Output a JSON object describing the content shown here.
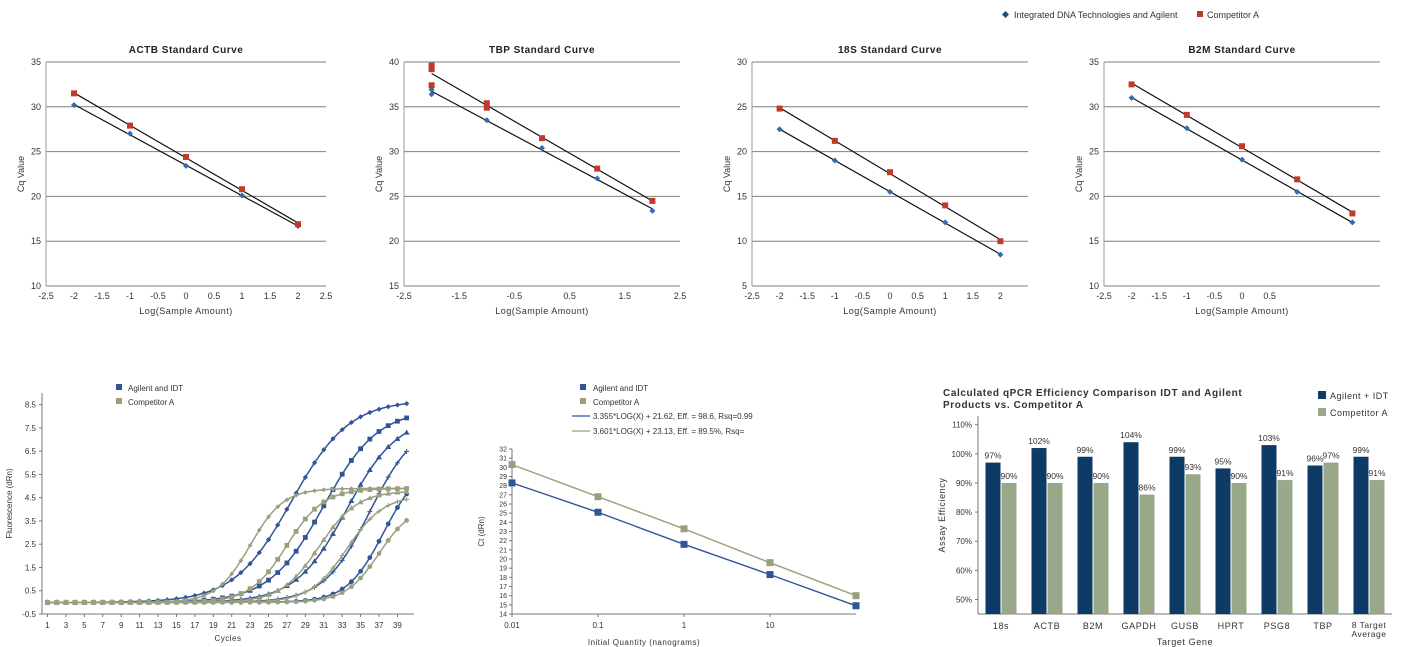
{
  "colors": {
    "idt": "#1f4e79",
    "competitor": "#c0392b",
    "idt_marker": "#2e6db4",
    "competitor_marker": "#c0392b",
    "fluor_agilent": "#2f5597",
    "fluor_competitor": "#9aa07e",
    "bar_agilent": "#0d3b66",
    "bar_competitor": "#9aa88a",
    "grid": "#7f7f7f"
  },
  "top_legend": {
    "series1": "Integrated DNA Technologies and Agilent",
    "series2": "Competitor A"
  },
  "fluorescence_legend": {
    "agilent": "Agilent and IDT",
    "competitor": "Competitor A"
  },
  "regression_legend": {
    "agilent": "Agilent and IDT",
    "competitor": "Competitor A",
    "agilent_fit": "3.355*LOG(X) + 21.62, Eff. = 98.6, Rsq=0.99",
    "competitor_fit": "3.601*LOG(X) + 23.13, Eff. = 89.5%, Rsq="
  },
  "chart_data": [
    {
      "type": "line",
      "title": "ACTB Standard Curve",
      "xlabel": "Log(Sample Amount)",
      "ylabel": "Cq Value",
      "xlim": [
        -2.5,
        2.5
      ],
      "ylim": [
        10,
        35
      ],
      "x_ticks": [
        "-2.5",
        "-2",
        "-1.5",
        "-1",
        "-0.5",
        "0",
        "0.5",
        "1",
        "1.5",
        "2",
        "2.5"
      ],
      "y_ticks": [
        "10",
        "15",
        "20",
        "25",
        "30",
        "35"
      ],
      "series": [
        {
          "name": "Integrated DNA Technologies and Agilent",
          "x": [
            -2,
            -1,
            0,
            1,
            2
          ],
          "y": [
            30.2,
            27.0,
            23.4,
            20.1,
            16.7
          ]
        },
        {
          "name": "Competitor A",
          "x": [
            -2,
            -1,
            0,
            1,
            2
          ],
          "y": [
            31.5,
            27.9,
            24.4,
            20.8,
            16.9
          ]
        }
      ]
    },
    {
      "type": "line",
      "title": "TBP Standard Curve",
      "xlabel": "Log(Sample Amount)",
      "ylabel": "Cq Value",
      "xlim": [
        -2.5,
        2.5
      ],
      "ylim": [
        15,
        40
      ],
      "x_ticks": [
        "-2.5",
        "-1.5",
        "-0.5",
        "0.5",
        "1.5",
        "2.5"
      ],
      "y_ticks": [
        "15",
        "20",
        "25",
        "30",
        "35",
        "40"
      ],
      "series": [
        {
          "name": "Integrated DNA Technologies and Agilent",
          "x": [
            -2,
            -2,
            -1,
            0,
            1,
            2
          ],
          "y": [
            36.4,
            36.9,
            33.5,
            30.4,
            27.0,
            23.4
          ]
        },
        {
          "name": "Competitor A",
          "x": [
            -2,
            -2,
            -2,
            -1,
            -1,
            0,
            1,
            2
          ],
          "y": [
            37.4,
            39.2,
            39.6,
            35.4,
            34.9,
            31.5,
            28.1,
            24.5
          ]
        }
      ]
    },
    {
      "type": "line",
      "title": "18S Standard Curve",
      "xlabel": "Log(Sample Amount)",
      "ylabel": "Cq Value",
      "xlim": [
        -2.5,
        2.5
      ],
      "ylim": [
        5,
        30
      ],
      "x_ticks": [
        "-2.5",
        "-2",
        "-1.5",
        "-1",
        "-0.5",
        "0",
        "0.5",
        "1",
        "1.5",
        "2"
      ],
      "y_ticks": [
        "5",
        "10",
        "15",
        "20",
        "25",
        "30"
      ],
      "series": [
        {
          "name": "Integrated DNA Technologies and Agilent",
          "x": [
            -2,
            -1,
            0,
            1,
            2
          ],
          "y": [
            22.5,
            19.0,
            15.5,
            12.1,
            8.5
          ]
        },
        {
          "name": "Competitor A",
          "x": [
            -2,
            -1,
            0,
            1,
            2
          ],
          "y": [
            24.8,
            21.2,
            17.7,
            14.0,
            10.0
          ]
        }
      ]
    },
    {
      "type": "line",
      "title": "B2M Standard Curve",
      "xlabel": "Log(Sample Amount)",
      "ylabel": "Cq Value",
      "xlim": [
        -2.5,
        2.5
      ],
      "ylim": [
        10,
        35
      ],
      "x_ticks": [
        "-2.5",
        "-2",
        "-1.5",
        "-1",
        "-0.5",
        "0",
        "0.5"
      ],
      "y_ticks": [
        "10",
        "15",
        "20",
        "25",
        "30",
        "35"
      ],
      "series": [
        {
          "name": "Integrated DNA Technologies and Agilent",
          "x": [
            -2,
            -1,
            0,
            1,
            2
          ],
          "y": [
            31.0,
            27.6,
            24.1,
            20.5,
            17.1
          ]
        },
        {
          "name": "Competitor A",
          "x": [
            -2,
            -1,
            0,
            1,
            2
          ],
          "y": [
            32.5,
            29.1,
            25.6,
            21.9,
            18.1
          ]
        }
      ]
    },
    {
      "type": "line",
      "xlabel": "Cycles",
      "ylabel": "Fluorescence (dRn)",
      "xlim": [
        1,
        40
      ],
      "ylim": [
        -0.5,
        9
      ],
      "x_ticks": [
        "1",
        "3",
        "5",
        "7",
        "9",
        "11",
        "13",
        "15",
        "17",
        "19",
        "21",
        "23",
        "25",
        "27",
        "29",
        "31",
        "33",
        "35",
        "37",
        "39"
      ],
      "y_ticks": [
        "-0.5",
        "0.5",
        "1.5",
        "2.5",
        "3.5",
        "4.5",
        "5.5",
        "6.5",
        "7.5",
        "8.5"
      ],
      "series": [
        {
          "name": "Agilent and IDT",
          "curves": [
            {
              "midpoint": 27.5,
              "plateau": 8.7,
              "steepness": 0.32
            },
            {
              "midpoint": 31.0,
              "plateau": 8.3,
              "steepness": 0.34
            },
            {
              "midpoint": 33.5,
              "plateau": 8.0,
              "steepness": 0.36
            },
            {
              "midpoint": 36.0,
              "plateau": 7.8,
              "steepness": 0.4
            },
            {
              "midpoint": 37.5,
              "plateau": 6.0,
              "steepness": 0.5
            }
          ]
        },
        {
          "name": "Competitor A",
          "curves": [
            {
              "midpoint": 23.0,
              "plateau": 4.9,
              "steepness": 0.55
            },
            {
              "midpoint": 27.0,
              "plateau": 4.9,
              "steepness": 0.5
            },
            {
              "midpoint": 30.5,
              "plateau": 4.8,
              "steepness": 0.48
            },
            {
              "midpoint": 33.5,
              "plateau": 4.6,
              "steepness": 0.5
            },
            {
              "midpoint": 37.0,
              "plateau": 4.2,
              "steepness": 0.55
            }
          ]
        }
      ]
    },
    {
      "type": "line",
      "xlabel": "Initial Quantity (nanograms)",
      "ylabel": "Ct (dRn)",
      "x_scale": "log",
      "xlim": [
        0.01,
        100
      ],
      "ylim": [
        14,
        32
      ],
      "x_ticks": [
        "0.01",
        "0.1",
        "1",
        "10"
      ],
      "y_ticks": [
        "14",
        "15",
        "16",
        "17",
        "18",
        "19",
        "20",
        "21",
        "22",
        "23",
        "24",
        "25",
        "26",
        "27",
        "28",
        "29",
        "30",
        "31",
        "32"
      ],
      "series": [
        {
          "name": "Agilent and IDT",
          "x": [
            0.01,
            0.1,
            1,
            10,
            100
          ],
          "y": [
            28.3,
            25.1,
            21.6,
            18.3,
            14.9
          ]
        },
        {
          "name": "Competitor A",
          "x": [
            0.01,
            0.1,
            1,
            10,
            100
          ],
          "y": [
            30.3,
            26.8,
            23.3,
            19.6,
            16.0
          ]
        }
      ]
    },
    {
      "type": "bar",
      "title": "Calculated qPCR Efficiency Comparison IDT and Agilent Products vs. Competitor A",
      "xlabel": "Target Gene",
      "ylabel": "Assay Efficiency",
      "ylim": [
        45,
        113
      ],
      "y_ticks": [
        "50%",
        "60%",
        "70%",
        "80%",
        "90%",
        "100%",
        "110%"
      ],
      "categories": [
        "18s",
        "ACTB",
        "B2M",
        "GAPDH",
        "GUSB",
        "HPRT",
        "PSG8",
        "TBP",
        "8 Target Average"
      ],
      "series": [
        {
          "name": "Agilent + IDT",
          "values": [
            97,
            102,
            99,
            104,
            99,
            95,
            103,
            96,
            99
          ],
          "labels": [
            "97%",
            "102%",
            "99%",
            "104%",
            "99%",
            "95%",
            "103%",
            "96%",
            "99%"
          ]
        },
        {
          "name": "Competitor A",
          "values": [
            90,
            90,
            90,
            86,
            93,
            90,
            91,
            97,
            91
          ],
          "labels": [
            "90%",
            "90%",
            "90%",
            "86%",
            "93%",
            "90%",
            "91%",
            "97%",
            "91%"
          ]
        }
      ]
    }
  ]
}
